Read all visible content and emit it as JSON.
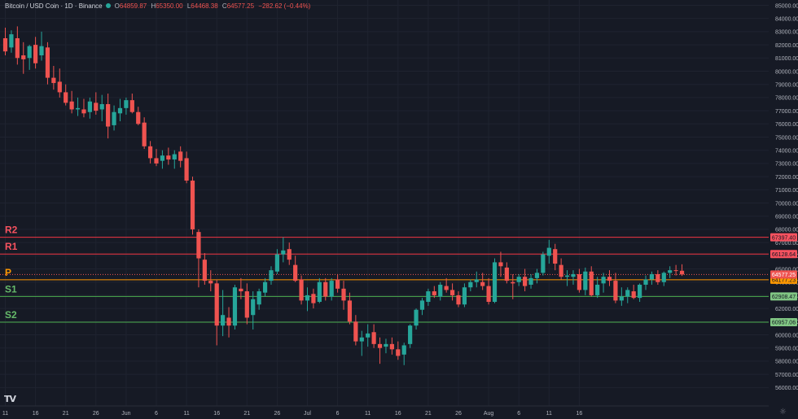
{
  "header": {
    "symbol": "Bitcoin / USD Coin · 1D · Binance",
    "o_label": "O",
    "o_value": "64859.87",
    "h_label": "H",
    "h_value": "65350.00",
    "l_label": "L",
    "l_value": "64468.38",
    "c_label": "C",
    "c_value": "64577.25",
    "change": "−282.62 (−0.44%)"
  },
  "logo_text": "TV",
  "settings_icon": "gear-icon",
  "colors": {
    "background": "#161a25",
    "up": "#26a69a",
    "down": "#ef5350",
    "resistance": "#f23645",
    "pivot": "#ff9800",
    "support": "#4caf50"
  },
  "chart_data": {
    "type": "candlestick",
    "title": "",
    "xlabel": "",
    "ylabel": "",
    "ylim": [
      54600,
      85400
    ],
    "grid": true,
    "y_ticks": [
      56000,
      57000,
      58000,
      59000,
      60000,
      61000,
      62000,
      63000,
      64000,
      65000,
      66000,
      67000,
      68000,
      69000,
      70000,
      71000,
      72000,
      73000,
      74000,
      75000,
      76000,
      77000,
      78000,
      79000,
      80000,
      81000,
      82000,
      83000,
      84000,
      85000
    ],
    "x_tick_labels": [
      "11",
      "16",
      "21",
      "26",
      "Jun",
      "6",
      "11",
      "16",
      "21",
      "26",
      "Jul",
      "6",
      "11",
      "16",
      "21",
      "26",
      "Aug",
      "6",
      "11",
      "16"
    ],
    "current_price": {
      "value": 64577.25,
      "label": "64577.25"
    },
    "levels": [
      {
        "name": "R2",
        "value": 67397.4,
        "label": "67397.40",
        "kind": "resistance"
      },
      {
        "name": "R1",
        "value": 66128.64,
        "label": "66128.64",
        "kind": "resistance"
      },
      {
        "name": "P",
        "value": 64177.23,
        "label": "64177.23",
        "kind": "pivot"
      },
      {
        "name": "S1",
        "value": 62908.47,
        "label": "62908.47",
        "kind": "support"
      },
      {
        "name": "S2",
        "value": 60957.06,
        "label": "60957.06",
        "kind": "support"
      }
    ],
    "candles": [
      [
        82500,
        83300,
        81200,
        81500
      ],
      [
        81800,
        83100,
        81400,
        82800
      ],
      [
        82500,
        83400,
        80500,
        81000
      ],
      [
        81200,
        82200,
        79800,
        80900
      ],
      [
        81000,
        82000,
        80100,
        81900
      ],
      [
        82000,
        82600,
        80200,
        80600
      ],
      [
        81200,
        83000,
        80800,
        81900
      ],
      [
        81800,
        82200,
        79000,
        79500
      ],
      [
        79500,
        80400,
        78600,
        79100
      ],
      [
        79200,
        80200,
        78000,
        78400
      ],
      [
        78400,
        79000,
        77400,
        77600
      ],
      [
        77700,
        78500,
        76800,
        77100
      ],
      [
        77100,
        78000,
        76600,
        77200
      ],
      [
        77100,
        77900,
        76500,
        76800
      ],
      [
        76900,
        78000,
        76400,
        77700
      ],
      [
        77600,
        78400,
        76700,
        77000
      ],
      [
        77100,
        78200,
        76200,
        77500
      ],
      [
        77500,
        78300,
        74900,
        75800
      ],
      [
        75900,
        77400,
        75500,
        76900
      ],
      [
        76800,
        77900,
        76200,
        77200
      ],
      [
        77200,
        78000,
        76700,
        77800
      ],
      [
        77800,
        78300,
        76800,
        76900
      ],
      [
        76900,
        77300,
        75900,
        76000
      ],
      [
        76100,
        76500,
        74100,
        74300
      ],
      [
        74300,
        74700,
        73000,
        73400
      ],
      [
        73400,
        74100,
        72800,
        73000
      ],
      [
        73200,
        74000,
        72600,
        73600
      ],
      [
        73600,
        74200,
        72900,
        73300
      ],
      [
        73300,
        74000,
        72600,
        73700
      ],
      [
        73900,
        74300,
        72700,
        73200
      ],
      [
        73400,
        73900,
        71500,
        71700
      ],
      [
        71700,
        72000,
        67600,
        68000
      ],
      [
        67800,
        68000,
        63600,
        65800
      ],
      [
        65700,
        66200,
        63800,
        64100
      ],
      [
        64100,
        64900,
        63300,
        63900
      ],
      [
        63900,
        64200,
        59200,
        60700
      ],
      [
        60700,
        63400,
        59900,
        61500
      ],
      [
        61300,
        62100,
        59800,
        60700
      ],
      [
        60700,
        63800,
        60400,
        63600
      ],
      [
        63500,
        64300,
        62700,
        63300
      ],
      [
        63300,
        63900,
        60800,
        61300
      ],
      [
        61500,
        63300,
        60400,
        62700
      ],
      [
        62300,
        63500,
        61900,
        63300
      ],
      [
        63200,
        64300,
        62900,
        64000
      ],
      [
        64100,
        65200,
        63800,
        64900
      ],
      [
        64800,
        66500,
        64600,
        66100
      ],
      [
        66100,
        67400,
        65500,
        66400
      ],
      [
        66500,
        67000,
        65300,
        65700
      ],
      [
        65300,
        66000,
        64000,
        64100
      ],
      [
        64200,
        64500,
        62300,
        62600
      ],
      [
        62600,
        63600,
        61800,
        63000
      ],
      [
        63100,
        63500,
        62000,
        62400
      ],
      [
        62500,
        64300,
        62400,
        64000
      ],
      [
        64000,
        64300,
        62600,
        62900
      ],
      [
        62900,
        64300,
        62600,
        64100
      ],
      [
        64200,
        64600,
        63200,
        63500
      ],
      [
        63500,
        64100,
        61900,
        62600
      ],
      [
        62600,
        63200,
        60800,
        61000
      ],
      [
        61000,
        61500,
        59200,
        59500
      ],
      [
        59500,
        60300,
        58400,
        59800
      ],
      [
        59800,
        60800,
        59100,
        60100
      ],
      [
        60200,
        60800,
        59000,
        59300
      ],
      [
        59300,
        59800,
        57800,
        59000
      ],
      [
        59100,
        59700,
        58600,
        59300
      ],
      [
        59300,
        59800,
        58500,
        58900
      ],
      [
        58900,
        59500,
        58100,
        58400
      ],
      [
        58500,
        59400,
        57700,
        59200
      ],
      [
        59300,
        60800,
        59000,
        60700
      ],
      [
        60700,
        62000,
        60400,
        61900
      ],
      [
        61900,
        62800,
        61500,
        62600
      ],
      [
        62500,
        63500,
        62200,
        63300
      ],
      [
        63300,
        63700,
        62800,
        63000
      ],
      [
        62900,
        64000,
        62600,
        63800
      ],
      [
        63700,
        64300,
        63200,
        63400
      ],
      [
        63400,
        63900,
        62600,
        63000
      ],
      [
        63000,
        63300,
        62100,
        62300
      ],
      [
        62300,
        63900,
        62100,
        63600
      ],
      [
        63600,
        64200,
        63300,
        64000
      ],
      [
        64000,
        64800,
        63600,
        64200
      ],
      [
        64000,
        64700,
        63400,
        63700
      ],
      [
        63700,
        64300,
        62300,
        62500
      ],
      [
        62500,
        65800,
        62400,
        65500
      ],
      [
        65500,
        66300,
        64400,
        65200
      ],
      [
        65100,
        65500,
        63900,
        64100
      ],
      [
        64000,
        64600,
        62700,
        63900
      ],
      [
        64000,
        64600,
        63700,
        64400
      ],
      [
        64400,
        65000,
        63300,
        63700
      ],
      [
        63800,
        64600,
        63500,
        64300
      ],
      [
        64300,
        65000,
        63900,
        64700
      ],
      [
        64700,
        66300,
        64500,
        66100
      ],
      [
        66000,
        67200,
        65400,
        66600
      ],
      [
        66500,
        66900,
        64900,
        65400
      ],
      [
        65300,
        65800,
        64200,
        64400
      ],
      [
        64400,
        64900,
        63700,
        64500
      ],
      [
        64400,
        64900,
        63800,
        64600
      ],
      [
        64600,
        65000,
        63200,
        63400
      ],
      [
        63400,
        65100,
        63000,
        64800
      ],
      [
        64800,
        65200,
        62900,
        63000
      ],
      [
        63000,
        64400,
        62800,
        63800
      ],
      [
        63900,
        64700,
        63200,
        64400
      ],
      [
        64400,
        64900,
        63700,
        64100
      ],
      [
        64100,
        64700,
        62400,
        62600
      ],
      [
        62600,
        63600,
        62200,
        62900
      ],
      [
        62900,
        63600,
        62400,
        63400
      ],
      [
        63300,
        63800,
        62700,
        62800
      ],
      [
        62800,
        63900,
        62500,
        63800
      ],
      [
        63800,
        64500,
        63400,
        64200
      ],
      [
        64200,
        64800,
        63800,
        64600
      ],
      [
        64600,
        64900,
        63800,
        64000
      ],
      [
        64000,
        64800,
        63700,
        64700
      ],
      [
        64700,
        65200,
        64300,
        64900
      ],
      [
        64900,
        65300,
        64500,
        64860
      ],
      [
        64860,
        65350,
        64468,
        64577
      ]
    ]
  }
}
